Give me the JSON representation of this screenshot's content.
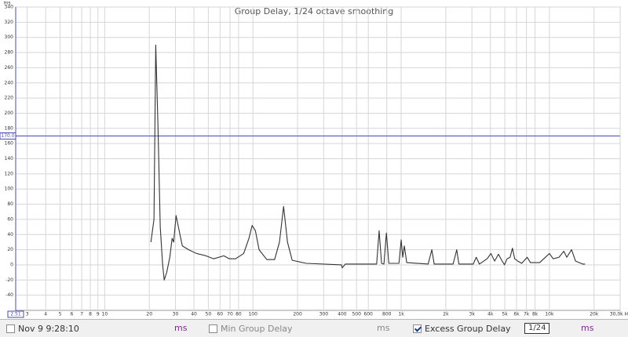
{
  "chart_data": {
    "type": "line",
    "title": "Group Delay, 1/24 octave smoothing",
    "y_unit": "ms",
    "log_x": true,
    "grid": true,
    "xlim": [
      2.51,
      30000
    ],
    "ylim": [
      -60,
      340
    ],
    "xticks": [
      3,
      4,
      5,
      6,
      7,
      8,
      9,
      10,
      20,
      30,
      40,
      50,
      60,
      70,
      80,
      100,
      200,
      300,
      400,
      500,
      600,
      800,
      {
        "value": 1000,
        "label": "1k"
      },
      {
        "value": 2000,
        "label": "2k"
      },
      {
        "value": 3000,
        "label": "3k"
      },
      {
        "value": 4000,
        "label": "4k"
      },
      {
        "value": 5000,
        "label": "5k"
      },
      {
        "value": 6000,
        "label": "6k"
      },
      {
        "value": 7000,
        "label": "7k"
      },
      {
        "value": 8000,
        "label": "8k"
      },
      {
        "value": 10000,
        "label": "10k"
      },
      {
        "value": 20000,
        "label": "20k"
      },
      {
        "value": 30000,
        "label": "30,0k Hz"
      }
    ],
    "yticks": [
      -40,
      -20,
      0,
      20,
      40,
      60,
      80,
      100,
      120,
      140,
      160,
      180,
      200,
      220,
      240,
      260,
      280,
      300,
      320,
      340
    ],
    "cursor": {
      "x": {
        "value": 2.51,
        "label": "2.51"
      },
      "y": {
        "value": 170,
        "label": "170.0"
      },
      "color": "#4a4ab0"
    },
    "series": [
      {
        "name": "Excess Group Delay",
        "color": "#333333",
        "x": [
          20.5,
          21.5,
          22.1,
          22.9,
          23.7,
          24.6,
          25.2,
          26.2,
          27.5,
          28.5,
          29.2,
          30.3,
          31.8,
          33.4,
          36.8,
          41.6,
          48.1,
          54.4,
          63.6,
          69.4,
          76.4,
          86.6,
          94,
          98.8,
          103.9,
          110,
          124,
          140,
          151,
          161,
          171,
          184,
          229,
          396,
          400,
          420,
          683,
          710,
          737,
          765,
          795,
          825,
          966,
          1000,
          1025,
          1050,
          1090,
          1520,
          1610,
          1670,
          2240,
          2370,
          2450,
          3060,
          3210,
          3370,
          3800,
          4030,
          4270,
          4530,
          4800,
          4980,
          5180,
          5430,
          5630,
          5830,
          6120,
          6500,
          7080,
          7440,
          8600,
          10000,
          10600,
          11600,
          12500,
          13100,
          14100,
          15000,
          16800,
          17400
        ],
        "values": [
          30,
          60,
          290,
          180,
          50,
          0,
          -20,
          -10,
          10,
          35,
          30,
          65,
          45,
          25,
          20,
          15,
          12,
          8,
          12,
          8,
          8,
          15,
          35,
          52,
          45,
          20,
          7,
          7,
          30,
          77,
          30,
          6,
          2,
          0,
          -4,
          1,
          1,
          45,
          2,
          1,
          42,
          2,
          2,
          33,
          10,
          25,
          3,
          1,
          20,
          1,
          1,
          20,
          1,
          1,
          10,
          1,
          8,
          15,
          5,
          14,
          5,
          0,
          8,
          10,
          22,
          8,
          5,
          2,
          10,
          3,
          3,
          15,
          8,
          10,
          18,
          10,
          20,
          5,
          1,
          1
        ]
      }
    ]
  },
  "toolbar": [
    {
      "label": "Nov 9 9:28:10",
      "checked": false,
      "unit": "ms"
    },
    {
      "label": "Min Group Delay",
      "checked": false,
      "unit": "ms"
    },
    {
      "label": "Excess Group Delay",
      "checked": true,
      "smoothing": "1/24",
      "unit": "ms"
    }
  ]
}
